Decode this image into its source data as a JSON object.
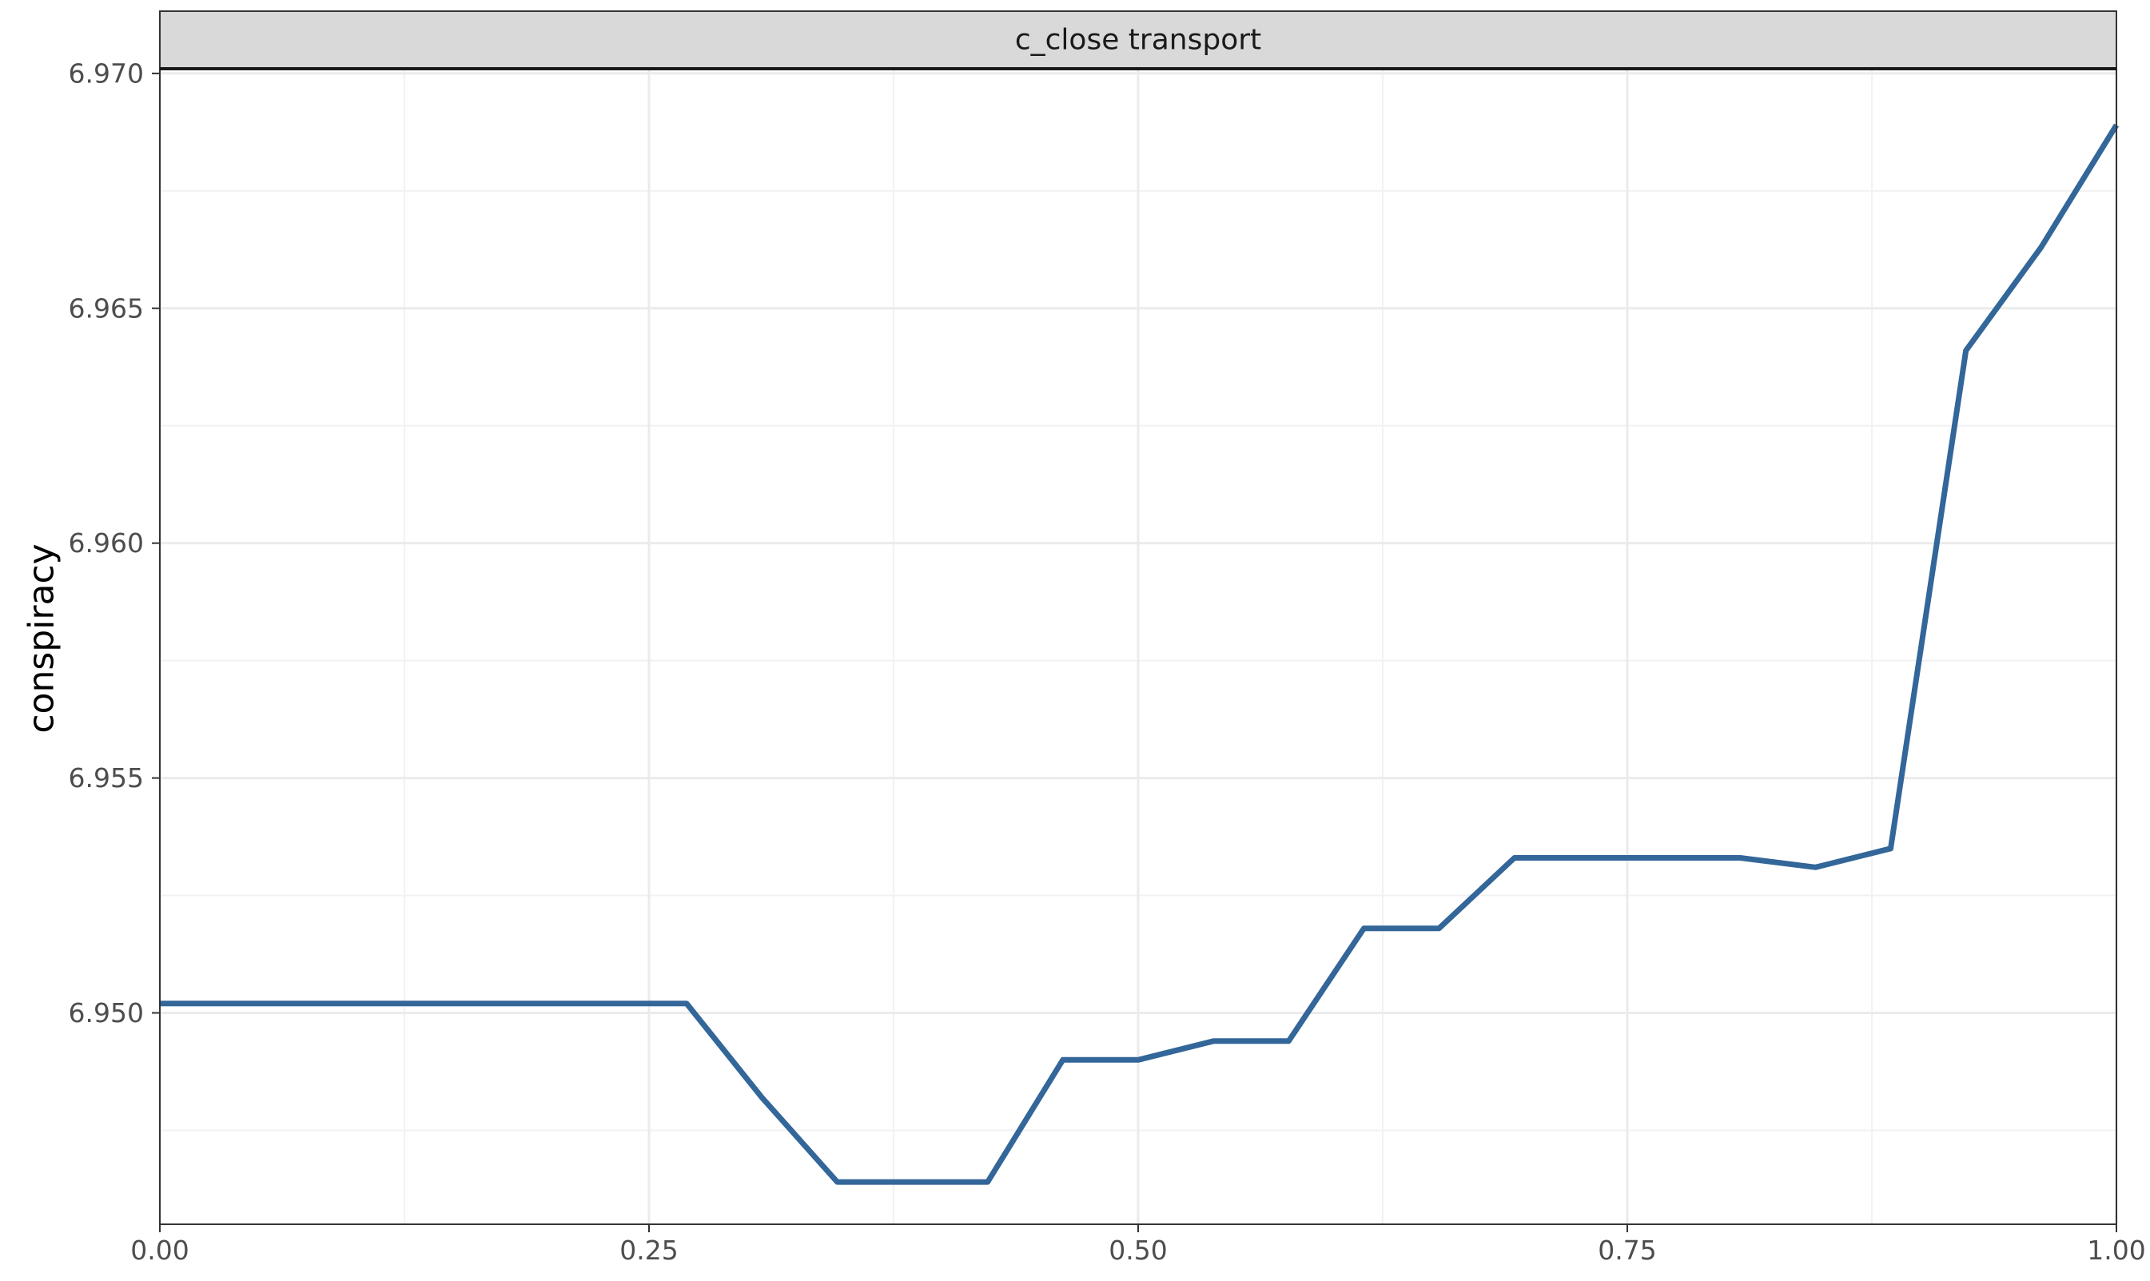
{
  "chart_data": {
    "type": "line",
    "facet_label": "c_close transport",
    "xlabel": "",
    "ylabel": "conspiracy",
    "xlim": [
      0,
      1
    ],
    "ylim": [
      6.9455,
      6.9701
    ],
    "x_ticks": [
      0.0,
      0.25,
      0.5,
      0.75,
      1.0
    ],
    "x_tick_labels": [
      "0.00",
      "0.25",
      "0.50",
      "0.75",
      "1.00"
    ],
    "y_ticks": [
      6.95,
      6.955,
      6.96,
      6.965,
      6.97
    ],
    "y_tick_labels": [
      "6.950",
      "6.955",
      "6.960",
      "6.965",
      "6.970"
    ],
    "grid": true,
    "legend": "none",
    "series": [
      {
        "color": "#336699",
        "x": [
          0.0,
          0.0385,
          0.0769,
          0.1154,
          0.1538,
          0.1923,
          0.2308,
          0.2692,
          0.3077,
          0.3462,
          0.3846,
          0.4231,
          0.4615,
          0.5,
          0.5385,
          0.5769,
          0.6154,
          0.6538,
          0.6923,
          0.7308,
          0.7692,
          0.8077,
          0.8462,
          0.8846,
          0.9231,
          0.9615,
          1.0
        ],
        "y": [
          6.9502,
          6.9502,
          6.9502,
          6.9502,
          6.9502,
          6.9502,
          6.9502,
          6.9502,
          6.9482,
          6.9464,
          6.9464,
          6.9464,
          6.949,
          6.949,
          6.9494,
          6.9494,
          6.9518,
          6.9518,
          6.9533,
          6.9533,
          6.9533,
          6.9533,
          6.9531,
          6.9535,
          6.9641,
          6.9663,
          6.9689
        ]
      }
    ]
  },
  "colors": {
    "line": "#336699",
    "strip_background": "#d9d9d9",
    "grid_major": "#ebebeb",
    "grid_minor": "#f2f2f2",
    "panel_border": "#333333"
  }
}
